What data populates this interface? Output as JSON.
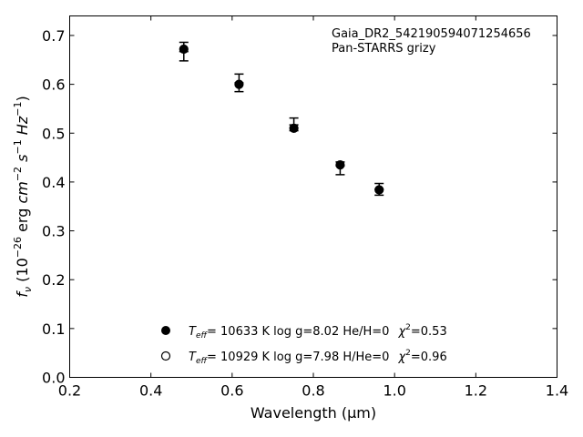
{
  "chart_data": {
    "type": "scatter",
    "xlabel": "Wavelength (μm)",
    "xlim": [
      0.2,
      1.4
    ],
    "ylim": [
      0.0,
      0.74
    ],
    "xticks": [
      "0.2",
      "0.4",
      "0.6",
      "0.8",
      "1.0",
      "1.2",
      "1.4"
    ],
    "yticks": [
      "0.0",
      "0.1",
      "0.2",
      "0.3",
      "0.4",
      "0.5",
      "0.6",
      "0.7"
    ],
    "annotations": [
      "Gaia_DR2_542190594071254656",
      "Pan-STARRS grizy"
    ],
    "observed": {
      "x": [
        0.481,
        0.617,
        0.752,
        0.866,
        0.962
      ],
      "y": [
        0.667,
        0.603,
        0.517,
        0.433,
        0.385
      ],
      "err_low": [
        0.019,
        0.018,
        0.012,
        0.018,
        0.012
      ],
      "err_high": [
        0.019,
        0.018,
        0.014,
        0.008,
        0.012
      ]
    },
    "series": [
      {
        "marker": "filled-circle",
        "x": [
          0.481,
          0.617,
          0.752,
          0.866,
          0.962
        ],
        "y": [
          0.672,
          0.6,
          0.51,
          0.435,
          0.384
        ],
        "legend": {
          "teff_label": "= 10633 K  log g=8.02  He/H=0",
          "chi_label": "=0.53"
        }
      },
      {
        "marker": "open-circle",
        "x": [],
        "y": [],
        "legend": {
          "teff_label": "= 10929 K  log g=7.98  H/He=0",
          "chi_label": "=0.96"
        }
      }
    ]
  }
}
